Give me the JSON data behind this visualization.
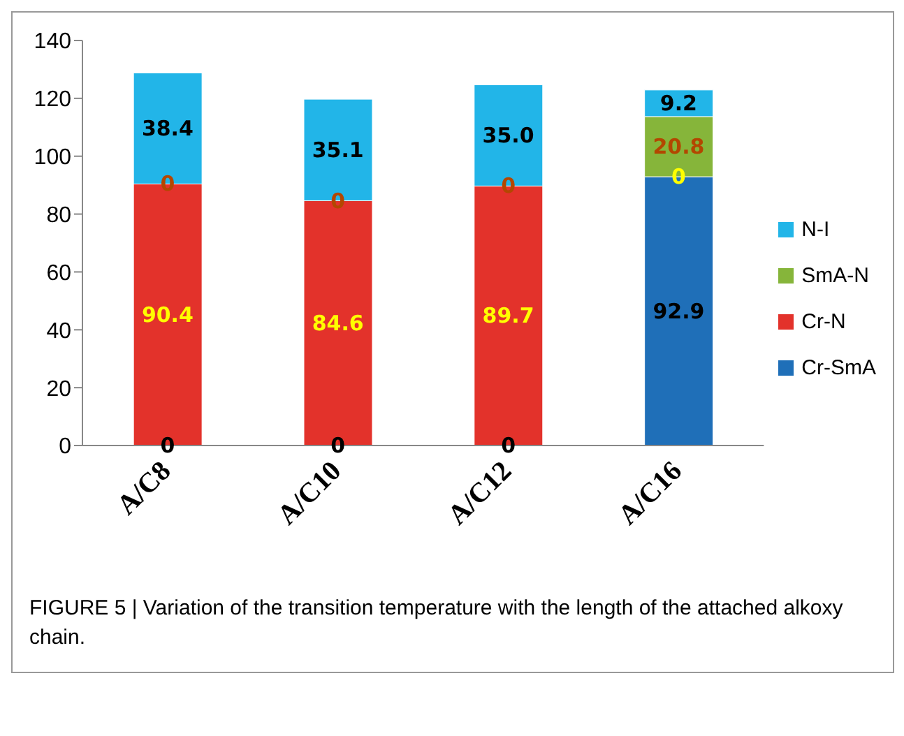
{
  "chart_data": {
    "type": "bar",
    "stacked": true,
    "categories": [
      "A/C8",
      "A/C10",
      "A/C12",
      "A/C16"
    ],
    "series": [
      {
        "name": "Cr-SmA",
        "color": "#1f6fb8",
        "values": [
          0,
          0,
          0,
          92.9
        ]
      },
      {
        "name": "Cr-N",
        "color": "#e3322b",
        "values": [
          90.4,
          84.6,
          89.7,
          0
        ]
      },
      {
        "name": "SmA-N",
        "color": "#86b53a",
        "values": [
          0,
          0,
          0,
          20.8
        ]
      },
      {
        "name": "N-I",
        "color": "#22b5e8",
        "values": [
          38.4,
          35.1,
          35.0,
          9.2
        ]
      }
    ],
    "ylim": [
      0,
      140
    ],
    "yticks": [
      0,
      20,
      40,
      60,
      80,
      100,
      120,
      140
    ],
    "grid": false,
    "legend": "right",
    "value_labels": [
      [
        "0",
        "0",
        "0",
        "92.9"
      ],
      [
        "90.4",
        "84.6",
        "89.7",
        "0"
      ],
      [
        "0",
        "0",
        "0",
        "20.8"
      ],
      [
        "38.4",
        "35.1",
        "35.0",
        "9.2"
      ]
    ],
    "annotations": [
      "FIGURE 5 | Variation of the transition temperature with the length of the attached alkoxy chain."
    ]
  }
}
